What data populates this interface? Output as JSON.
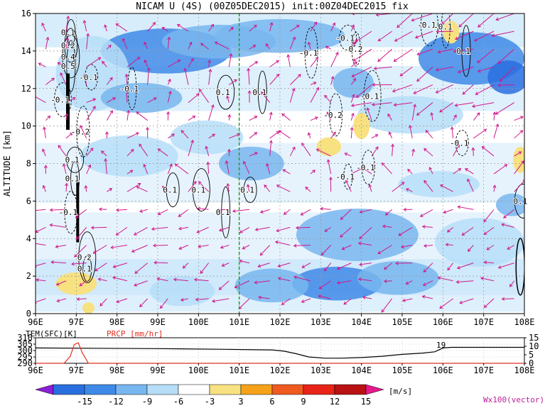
{
  "chart_data": {
    "type": "heatmap",
    "title": "NICAM U (4S) (00Z05DEC2015) init:00Z04DEC2015 fix",
    "ylabel": "ALTITUDE [km]",
    "xlim": [
      96,
      108
    ],
    "ylim": [
      0,
      16
    ],
    "x_ticks": [
      "96E",
      "97E",
      "98E",
      "99E",
      "100E",
      "101E",
      "102E",
      "103E",
      "104E",
      "105E",
      "106E",
      "107E",
      "108E"
    ],
    "y_ticks": [
      "0",
      "2",
      "4",
      "6",
      "8",
      "10",
      "12",
      "14",
      "16"
    ],
    "grid": true,
    "reference_line_x": 101,
    "shading_blobs": [
      {
        "x": 99.2,
        "y": 14.0,
        "rx": 1.6,
        "ry": 1.2,
        "level": -12
      },
      {
        "x": 100.5,
        "y": 14.5,
        "rx": 1.4,
        "ry": 0.9,
        "level": -9
      },
      {
        "x": 102.0,
        "y": 14.8,
        "rx": 1.6,
        "ry": 0.9,
        "level": -9
      },
      {
        "x": 106.7,
        "y": 13.6,
        "rx": 1.3,
        "ry": 1.4,
        "level": -12
      },
      {
        "x": 107.6,
        "y": 12.6,
        "rx": 0.5,
        "ry": 0.9,
        "level": -15
      },
      {
        "x": 97.4,
        "y": 12.8,
        "rx": 0.9,
        "ry": 2.0,
        "level": -6
      },
      {
        "x": 98.6,
        "y": 11.5,
        "rx": 1.0,
        "ry": 0.8,
        "level": -9
      },
      {
        "x": 98.3,
        "y": 8.4,
        "rx": 1.2,
        "ry": 1.1,
        "level": -6
      },
      {
        "x": 100.2,
        "y": 9.4,
        "rx": 0.9,
        "ry": 0.9,
        "level": -6
      },
      {
        "x": 103.8,
        "y": 12.3,
        "rx": 0.5,
        "ry": 0.8,
        "level": -9
      },
      {
        "x": 105.2,
        "y": 10.6,
        "rx": 1.3,
        "ry": 1.0,
        "level": -6
      },
      {
        "x": 101.3,
        "y": 8.0,
        "rx": 0.8,
        "ry": 0.9,
        "level": -9
      },
      {
        "x": 103.9,
        "y": 4.2,
        "rx": 1.5,
        "ry": 1.4,
        "level": -9
      },
      {
        "x": 103.4,
        "y": 1.6,
        "rx": 1.1,
        "ry": 0.9,
        "level": -12
      },
      {
        "x": 104.9,
        "y": 1.9,
        "rx": 1.0,
        "ry": 0.9,
        "level": -9
      },
      {
        "x": 101.8,
        "y": 1.5,
        "rx": 0.9,
        "ry": 0.9,
        "level": -9
      },
      {
        "x": 99.6,
        "y": 1.2,
        "rx": 0.8,
        "ry": 0.8,
        "level": -6
      },
      {
        "x": 106.9,
        "y": 3.8,
        "rx": 1.1,
        "ry": 1.3,
        "level": -6
      },
      {
        "x": 105.9,
        "y": 6.9,
        "rx": 1.0,
        "ry": 0.7,
        "level": -6
      },
      {
        "x": 107.7,
        "y": 5.8,
        "rx": 0.4,
        "ry": 0.6,
        "level": -9
      }
    ],
    "positive_blobs": [
      {
        "x": 97.0,
        "y": 1.6,
        "rx": 0.5,
        "ry": 0.6,
        "level": 3
      },
      {
        "x": 97.3,
        "y": 0.3,
        "rx": 0.15,
        "ry": 0.3,
        "level": 3
      },
      {
        "x": 103.2,
        "y": 8.9,
        "rx": 0.3,
        "ry": 0.5,
        "level": 3
      },
      {
        "x": 104.0,
        "y": 10.0,
        "rx": 0.2,
        "ry": 0.7,
        "level": 3
      },
      {
        "x": 106.2,
        "y": 15.0,
        "rx": 0.2,
        "ry": 0.6,
        "level": 3
      },
      {
        "x": 107.9,
        "y": 8.2,
        "rx": 0.18,
        "ry": 0.7,
        "level": 3
      }
    ],
    "contour_labels": [
      {
        "x": 96.8,
        "y": 15.0,
        "text": "0.1"
      },
      {
        "x": 96.8,
        "y": 14.3,
        "text": "0.2"
      },
      {
        "x": 96.8,
        "y": 13.7,
        "text": "0.4"
      },
      {
        "x": 96.8,
        "y": 13.2,
        "text": "0.5"
      },
      {
        "x": 97.3,
        "y": 12.6,
        "text": "-0.1"
      },
      {
        "x": 96.6,
        "y": 11.4,
        "text": "-0.1"
      },
      {
        "x": 98.3,
        "y": 12.0,
        "text": "-0.1"
      },
      {
        "x": 97.1,
        "y": 9.7,
        "text": "-0.2"
      },
      {
        "x": 96.9,
        "y": 8.2,
        "text": "0.1"
      },
      {
        "x": 96.9,
        "y": 7.2,
        "text": "0.1"
      },
      {
        "x": 96.8,
        "y": 5.4,
        "text": "-0.1"
      },
      {
        "x": 97.2,
        "y": 3.0,
        "text": "0.2"
      },
      {
        "x": 97.2,
        "y": 2.4,
        "text": "0.1"
      },
      {
        "x": 99.3,
        "y": 6.6,
        "text": "0.1"
      },
      {
        "x": 100.0,
        "y": 6.6,
        "text": "0.1"
      },
      {
        "x": 100.6,
        "y": 5.4,
        "text": "0.1"
      },
      {
        "x": 101.2,
        "y": 6.6,
        "text": "0.1"
      },
      {
        "x": 100.6,
        "y": 11.8,
        "text": "0.1"
      },
      {
        "x": 101.5,
        "y": 11.8,
        "text": "0.1"
      },
      {
        "x": 102.7,
        "y": 13.9,
        "text": "-0.1"
      },
      {
        "x": 103.6,
        "y": 14.7,
        "text": "-0.1"
      },
      {
        "x": 103.8,
        "y": 14.1,
        "text": "-0.2"
      },
      {
        "x": 103.3,
        "y": 10.6,
        "text": "-0.2"
      },
      {
        "x": 104.2,
        "y": 11.6,
        "text": "-0.1"
      },
      {
        "x": 103.6,
        "y": 7.3,
        "text": "-0.1"
      },
      {
        "x": 104.1,
        "y": 7.8,
        "text": "-0.1"
      },
      {
        "x": 105.6,
        "y": 15.4,
        "text": "-0.1"
      },
      {
        "x": 106.5,
        "y": 14.0,
        "text": "0.1"
      },
      {
        "x": 106.4,
        "y": 9.1,
        "text": "-0.1"
      },
      {
        "x": 107.9,
        "y": 6.0,
        "text": "0.1"
      },
      {
        "x": 106.0,
        "y": 15.3,
        "text": "-0.1"
      }
    ],
    "vector_label": "Wx100(vector)",
    "bottom_panel": {
      "label_tem": "TEM(SFC)[K]",
      "label_prcp": "PRCP [mm/hr]",
      "left_ticks": [
        "310",
        "305",
        "300",
        "295",
        "290"
      ],
      "right_ticks": [
        "15",
        "10",
        "5",
        "0"
      ],
      "label_19": "19",
      "tem_ylim": [
        290,
        310
      ],
      "prcp_ylim": [
        0,
        15
      ],
      "tem_x": [
        96.0,
        99.0,
        100.5,
        101.8,
        102.1,
        102.4,
        102.7,
        103.1,
        103.5,
        104.0,
        104.5,
        105.0,
        105.5,
        105.8,
        106.0,
        106.2,
        106.5,
        107.0,
        108.0
      ],
      "tem_y": [
        302,
        301.5,
        301,
        300.5,
        299.5,
        297.5,
        295,
        294,
        294,
        294.5,
        295.5,
        297,
        298,
        299,
        302,
        302.5,
        302.5,
        302.5,
        302.5
      ],
      "prcp_x": [
        96.0,
        96.7,
        96.85,
        96.95,
        97.05,
        97.15,
        97.3,
        99.0,
        108.0
      ],
      "prcp_y": [
        0,
        0,
        4,
        11,
        12,
        6,
        0,
        0,
        0
      ]
    },
    "colorbar": {
      "levels": [
        "-15",
        "-12",
        "-9",
        "-6",
        "-3",
        "3",
        "6",
        "9",
        "12",
        "15"
      ],
      "colors": [
        "#8a1fd6",
        "#2a6fe0",
        "#3f8ae8",
        "#78b6ef",
        "#b6def8",
        "#ffffff",
        "#f8e180",
        "#f5a21a",
        "#f05a20",
        "#e82418",
        "#b81212",
        "#e8188c"
      ],
      "units": "[m/s]"
    }
  }
}
